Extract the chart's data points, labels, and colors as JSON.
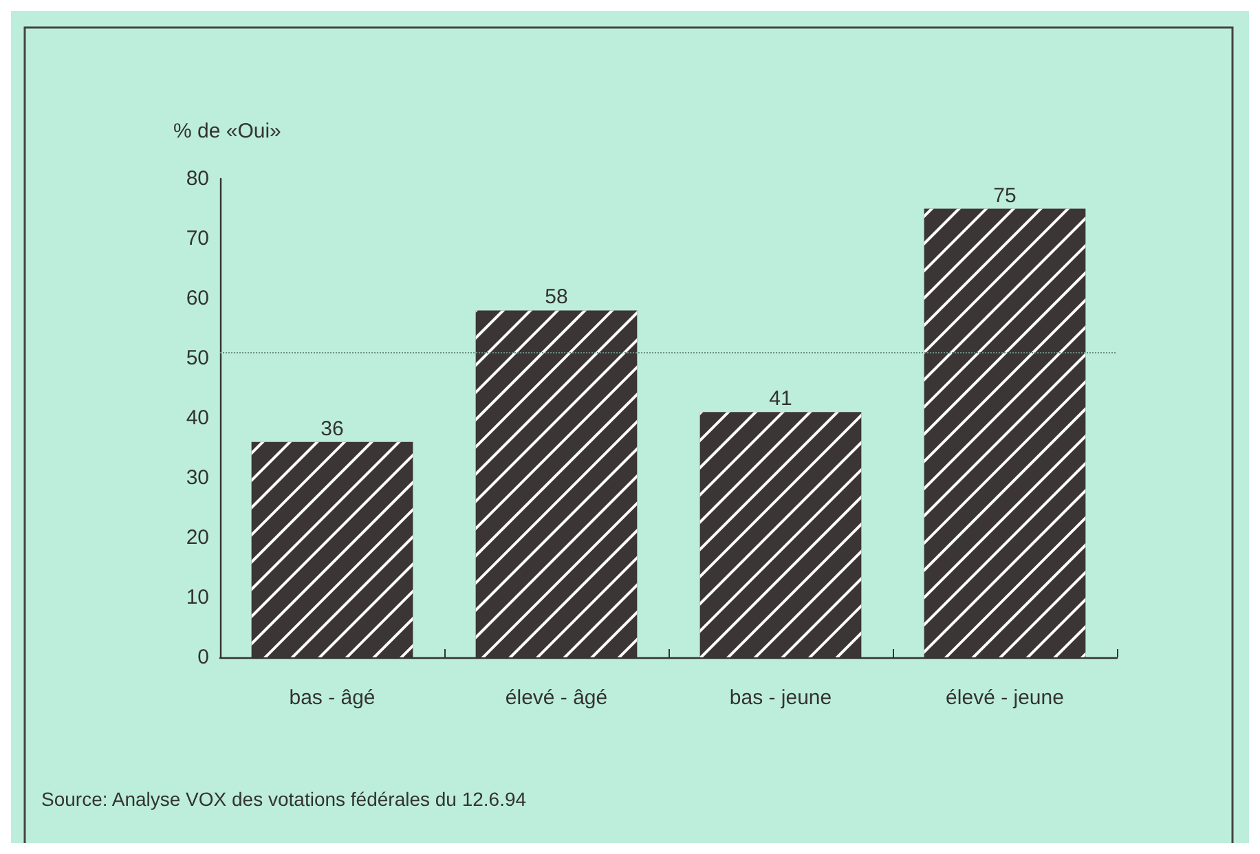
{
  "chart_data": {
    "type": "bar",
    "ylabel": "% de «Oui»",
    "categories": [
      "bas - âgé",
      "élevé - âgé",
      "bas - jeune",
      "élevé - jeune"
    ],
    "values": [
      36,
      58,
      41,
      75
    ],
    "color": "#3b3535",
    "data_labels": true,
    "ylim": [
      0,
      80
    ],
    "yticks": [
      0,
      10,
      20,
      30,
      40,
      50,
      60,
      70,
      80
    ],
    "grid": false,
    "ref_lines": [
      {
        "axis": "y",
        "value": 51,
        "line_style": "dotted",
        "color": "#6a8f86"
      }
    ],
    "annotations": [
      "Source: Analyse VOX des votations fédérales du 12.6.94"
    ]
  }
}
